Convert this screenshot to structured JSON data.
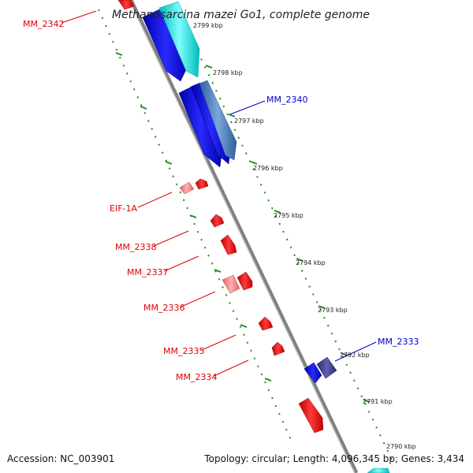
{
  "title": "Methanosarcina mazei Go1, complete genome",
  "ticks": [
    "2799 kbp",
    "2798 kbp",
    "2797 kbp",
    "2796 kbp",
    "2795 kbp",
    "2794 kbp",
    "2793 kbp",
    "2792 kbp",
    "2791 kbp",
    "2790 kbp"
  ],
  "genes": {
    "mm_2342": "MM_2342",
    "mm_2340": "MM_2340",
    "eif_1a": "EIF-1A",
    "mm_2338": "MM_2338",
    "mm_2337": "MM_2337",
    "mm_2336": "MM_2336",
    "mm_2335": "MM_2335",
    "mm_2334": "MM_2334",
    "mm_2333": "MM_2333"
  },
  "footer": {
    "accession": "Accession: NC_003901",
    "summary": "Topology: circular; Length: 4,096,345 bp; Genes: 3,434"
  },
  "colors": {
    "forward_cds": "#0000ee",
    "forward_cds_light": "#00e5e5",
    "forward_cds_steel": "#4a7fbf",
    "reverse_cds": "#ee0000",
    "reverse_cds_light": "#f08080",
    "dark_cds": "#3a3a8c",
    "backbone": "#888888",
    "tick_ring": "#228b22"
  }
}
